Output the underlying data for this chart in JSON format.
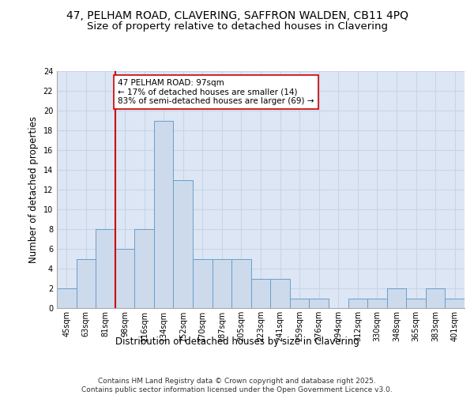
{
  "title_line1": "47, PELHAM ROAD, CLAVERING, SAFFRON WALDEN, CB11 4PQ",
  "title_line2": "Size of property relative to detached houses in Clavering",
  "xlabel": "Distribution of detached houses by size in Clavering",
  "ylabel": "Number of detached properties",
  "footer": "Contains HM Land Registry data © Crown copyright and database right 2025.\nContains public sector information licensed under the Open Government Licence v3.0.",
  "bin_labels": [
    "45sqm",
    "63sqm",
    "81sqm",
    "98sqm",
    "116sqm",
    "134sqm",
    "152sqm",
    "170sqm",
    "187sqm",
    "205sqm",
    "223sqm",
    "241sqm",
    "259sqm",
    "276sqm",
    "294sqm",
    "312sqm",
    "330sqm",
    "348sqm",
    "365sqm",
    "383sqm",
    "401sqm"
  ],
  "bar_values": [
    2,
    5,
    8,
    6,
    8,
    19,
    13,
    5,
    5,
    5,
    3,
    3,
    1,
    1,
    0,
    1,
    1,
    2,
    1,
    2,
    1
  ],
  "bar_color": "#ccdaec",
  "bar_edge_color": "#6a9fcb",
  "subject_line_color": "#cc0000",
  "annotation_text": "47 PELHAM ROAD: 97sqm\n← 17% of detached houses are smaller (14)\n83% of semi-detached houses are larger (69) →",
  "annotation_box_color": "#ffffff",
  "annotation_box_edge": "#cc0000",
  "ylim": [
    0,
    24
  ],
  "yticks": [
    0,
    2,
    4,
    6,
    8,
    10,
    12,
    14,
    16,
    18,
    20,
    22,
    24
  ],
  "grid_color": "#c8d4e8",
  "bg_color": "#dde6f4",
  "title_fontsize": 10,
  "subtitle_fontsize": 9.5,
  "axis_label_fontsize": 8.5,
  "tick_fontsize": 7,
  "footer_fontsize": 6.5,
  "annotation_fontsize": 7.5
}
